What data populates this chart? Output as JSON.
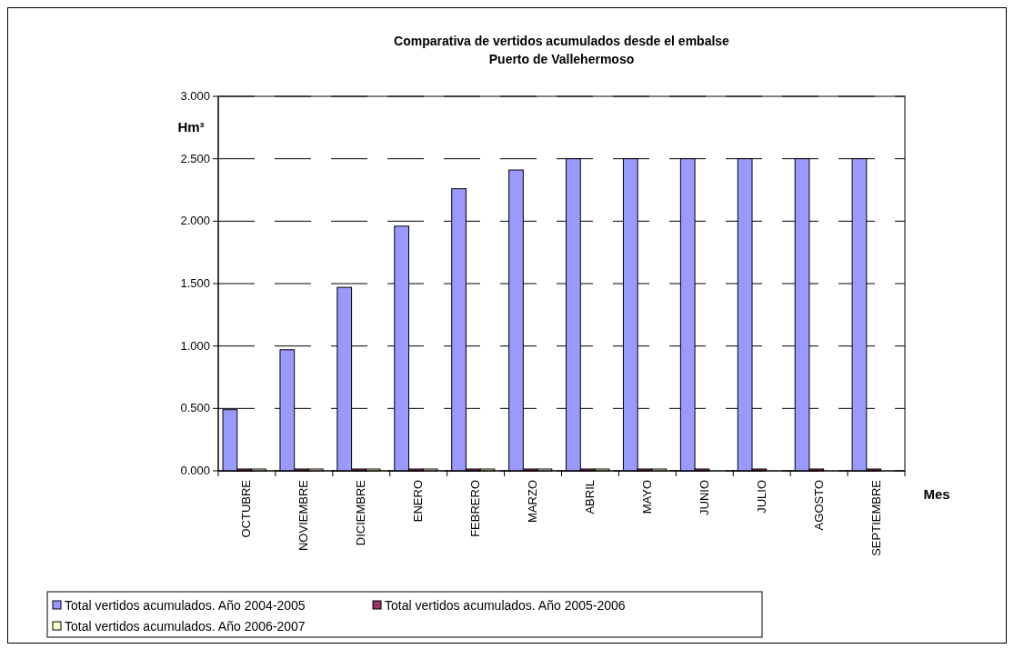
{
  "chart_data": {
    "type": "bar",
    "title": "Comparativa de vertidos acumulados desde el embalse",
    "subtitle": "Puerto de Vallehermoso",
    "xlabel": "Mes",
    "ylabel": "Hm³",
    "categories": [
      "OCTUBRE",
      "NOVIEMBRE",
      "DICIEMBRE",
      "ENERO",
      "FEBRERO",
      "MARZO",
      "ABRIL",
      "MAYO",
      "JUNIO",
      "JULIO",
      "AGOSTO",
      "SEPTIEMBRE"
    ],
    "series": [
      {
        "name": "Total vertidos acumulados. Año 2004-2005",
        "color": "#9999ff",
        "values": [
          0.49,
          0.97,
          1.47,
          1.96,
          2.26,
          2.41,
          2.5,
          2.5,
          2.5,
          2.5,
          2.5,
          2.5
        ]
      },
      {
        "name": "Total vertidos acumulados. Año 2005-2006",
        "color": "#993366",
        "values": [
          0,
          0,
          0,
          0,
          0,
          0,
          0,
          0,
          0,
          0,
          0,
          0
        ]
      },
      {
        "name": "Total vertidos acumulados. Año 2006-2007",
        "color": "#ffffcc",
        "values": [
          0,
          0,
          0,
          0,
          0,
          0,
          0,
          0,
          null,
          null,
          null,
          null
        ]
      }
    ],
    "ylim": [
      0,
      3
    ],
    "yticks": [
      {
        "value": 0,
        "label": "0.000"
      },
      {
        "value": 0.5,
        "label": "0.500"
      },
      {
        "value": 1,
        "label": "1.000"
      },
      {
        "value": 1.5,
        "label": "1.500"
      },
      {
        "value": 2,
        "label": "2.000"
      },
      {
        "value": 2.5,
        "label": "2.500"
      },
      {
        "value": 3,
        "label": "3.000"
      }
    ],
    "grid": "y",
    "legend": "bottom"
  }
}
